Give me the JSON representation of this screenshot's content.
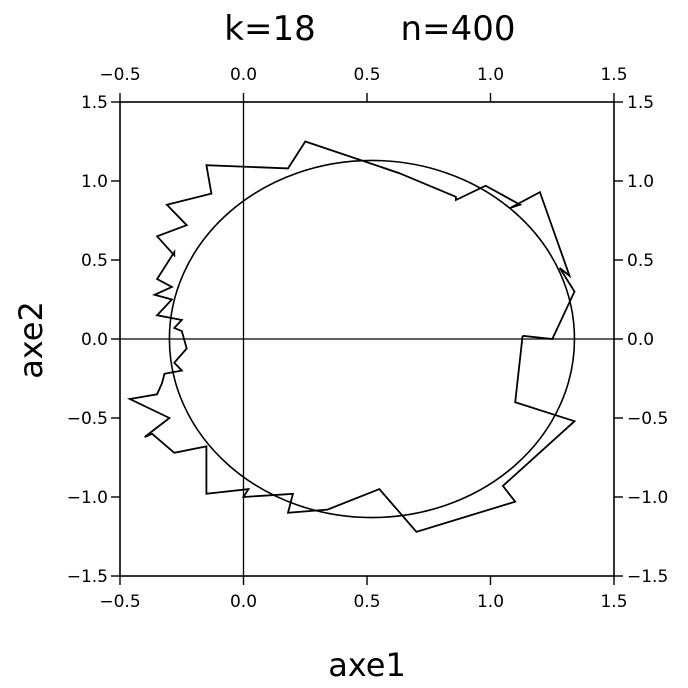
{
  "chart_data": {
    "type": "line",
    "title_k": "k=18",
    "title_n": "n=400",
    "xlabel": "axe1",
    "ylabel": "axe2",
    "xlim": [
      -0.5,
      1.5
    ],
    "ylim": [
      -1.5,
      1.5
    ],
    "grid": false,
    "x_ticks": [
      {
        "v": -0.5,
        "label": "−0.5"
      },
      {
        "v": 0.0,
        "label": "0.0"
      },
      {
        "v": 0.5,
        "label": "0.5"
      },
      {
        "v": 1.0,
        "label": "1.0"
      },
      {
        "v": 1.5,
        "label": "1.5"
      }
    ],
    "top_x_ticks": [
      {
        "v": -0.5,
        "label": "−0.5"
      },
      {
        "v": 0.0,
        "label": "0.0"
      },
      {
        "v": 0.5,
        "label": "0.5"
      },
      {
        "v": 1.0,
        "label": "1.0"
      },
      {
        "v": 1.5,
        "label": "1.5"
      }
    ],
    "y_ticks": [
      {
        "v": 1.5,
        "label": "1.5"
      },
      {
        "v": 1.0,
        "label": "1.0"
      },
      {
        "v": 0.5,
        "label": "0.5"
      },
      {
        "v": 0.0,
        "label": "0.0"
      },
      {
        "v": -0.5,
        "label": "−0.5"
      },
      {
        "v": -1.0,
        "label": "−1.0"
      },
      {
        "v": -1.5,
        "label": "−1.5"
      }
    ],
    "right_y_ticks": [
      {
        "v": 1.5,
        "label": "1.5"
      },
      {
        "v": 1.0,
        "label": "1.0"
      },
      {
        "v": 0.5,
        "label": "0.5"
      },
      {
        "v": 0.0,
        "label": "0.0"
      },
      {
        "v": -0.5,
        "label": "−0.5"
      },
      {
        "v": -1.0,
        "label": "−1.0"
      },
      {
        "v": -1.5,
        "label": "−1.5"
      }
    ],
    "ellipse": {
      "cx": 0.52,
      "cy": 0.0,
      "rx": 0.82,
      "ry": 1.13
    },
    "path": [
      [
        1.13,
        0.02
      ],
      [
        1.25,
        0.0
      ],
      [
        1.34,
        0.3
      ],
      [
        1.28,
        0.45
      ],
      [
        1.32,
        0.4
      ],
      [
        1.2,
        0.93
      ],
      [
        1.08,
        0.83
      ],
      [
        1.12,
        0.85
      ],
      [
        0.98,
        0.97
      ],
      [
        0.86,
        0.88
      ],
      [
        0.86,
        0.9
      ],
      [
        0.63,
        1.05
      ],
      [
        0.25,
        1.25
      ],
      [
        0.18,
        1.08
      ],
      [
        -0.15,
        1.1
      ],
      [
        -0.13,
        0.92
      ],
      [
        -0.31,
        0.85
      ],
      [
        -0.23,
        0.72
      ],
      [
        -0.35,
        0.65
      ],
      [
        -0.28,
        0.53
      ],
      [
        -0.28,
        0.55
      ],
      [
        -0.35,
        0.38
      ],
      [
        -0.29,
        0.33
      ],
      [
        -0.36,
        0.28
      ],
      [
        -0.29,
        0.25
      ],
      [
        -0.35,
        0.15
      ],
      [
        -0.25,
        0.12
      ],
      [
        -0.28,
        0.07
      ],
      [
        -0.25,
        0.05
      ],
      [
        -0.23,
        -0.06
      ],
      [
        -0.28,
        -0.15
      ],
      [
        -0.25,
        -0.2
      ],
      [
        -0.32,
        -0.22
      ],
      [
        -0.33,
        -0.28
      ],
      [
        -0.35,
        -0.35
      ],
      [
        -0.46,
        -0.38
      ],
      [
        -0.3,
        -0.5
      ],
      [
        -0.4,
        -0.62
      ],
      [
        -0.37,
        -0.6
      ],
      [
        -0.28,
        -0.72
      ],
      [
        -0.15,
        -0.68
      ],
      [
        -0.15,
        -0.98
      ],
      [
        0.02,
        -0.95
      ],
      [
        0.0,
        -1.0
      ],
      [
        0.2,
        -0.98
      ],
      [
        0.18,
        -1.1
      ],
      [
        0.34,
        -1.08
      ],
      [
        0.55,
        -0.95
      ],
      [
        0.7,
        -1.22
      ],
      [
        1.1,
        -1.03
      ],
      [
        1.05,
        -0.93
      ],
      [
        1.34,
        -0.52
      ],
      [
        1.1,
        -0.4
      ],
      [
        1.13,
        0.02
      ]
    ]
  }
}
